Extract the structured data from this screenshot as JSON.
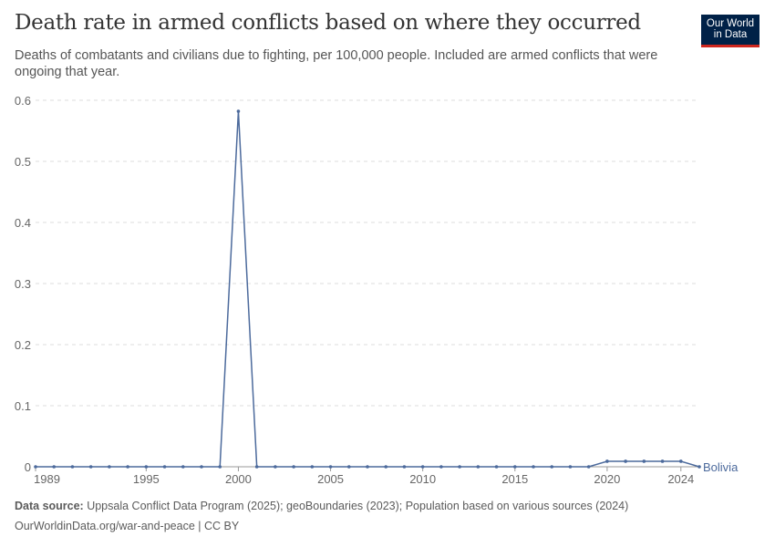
{
  "header": {
    "title": "Death rate in armed conflicts based on where they occurred",
    "subtitle": "Deaths of combatants and civilians due to fighting, per 100,000 people. Included are armed conflicts that were ongoing that year.",
    "logo": "Our World in Data"
  },
  "footer": {
    "source_label": "Data source:",
    "source": " Uppsala Conflict Data Program (2025); geoBoundaries (2023); Population based on various sources (2024)",
    "url": "OurWorldinData.org/war-and-peace | CC BY"
  },
  "colors": {
    "series": "#4c6a9c",
    "grid": "#dddddd",
    "text": "#666666"
  },
  "chart_data": {
    "type": "line",
    "title": "Death rate in armed conflicts based on where they occurred",
    "xlim": [
      1989,
      2025
    ],
    "ylim": [
      0,
      0.6
    ],
    "xticks": [
      1989,
      1995,
      2000,
      2005,
      2010,
      2015,
      2020,
      2024
    ],
    "yticks": [
      0,
      0.1,
      0.2,
      0.3,
      0.4,
      0.5,
      0.6
    ],
    "grid": "horizontal dashed",
    "series": [
      {
        "name": "Bolivia",
        "x": [
          1989,
          1990,
          1991,
          1992,
          1993,
          1994,
          1995,
          1996,
          1997,
          1998,
          1999,
          2000,
          2001,
          2002,
          2003,
          2004,
          2005,
          2006,
          2007,
          2008,
          2009,
          2010,
          2011,
          2012,
          2013,
          2014,
          2015,
          2016,
          2017,
          2018,
          2019,
          2020,
          2021,
          2022,
          2023,
          2024,
          2025
        ],
        "values": [
          0,
          0,
          0,
          0,
          0,
          0,
          0,
          0,
          0,
          0,
          0,
          0.582,
          0,
          0,
          0,
          0,
          0,
          0,
          0,
          0,
          0,
          0,
          0,
          0,
          0,
          0,
          0,
          0,
          0,
          0,
          0,
          0.009,
          0.009,
          0.009,
          0.009,
          0.009,
          0
        ]
      }
    ]
  }
}
